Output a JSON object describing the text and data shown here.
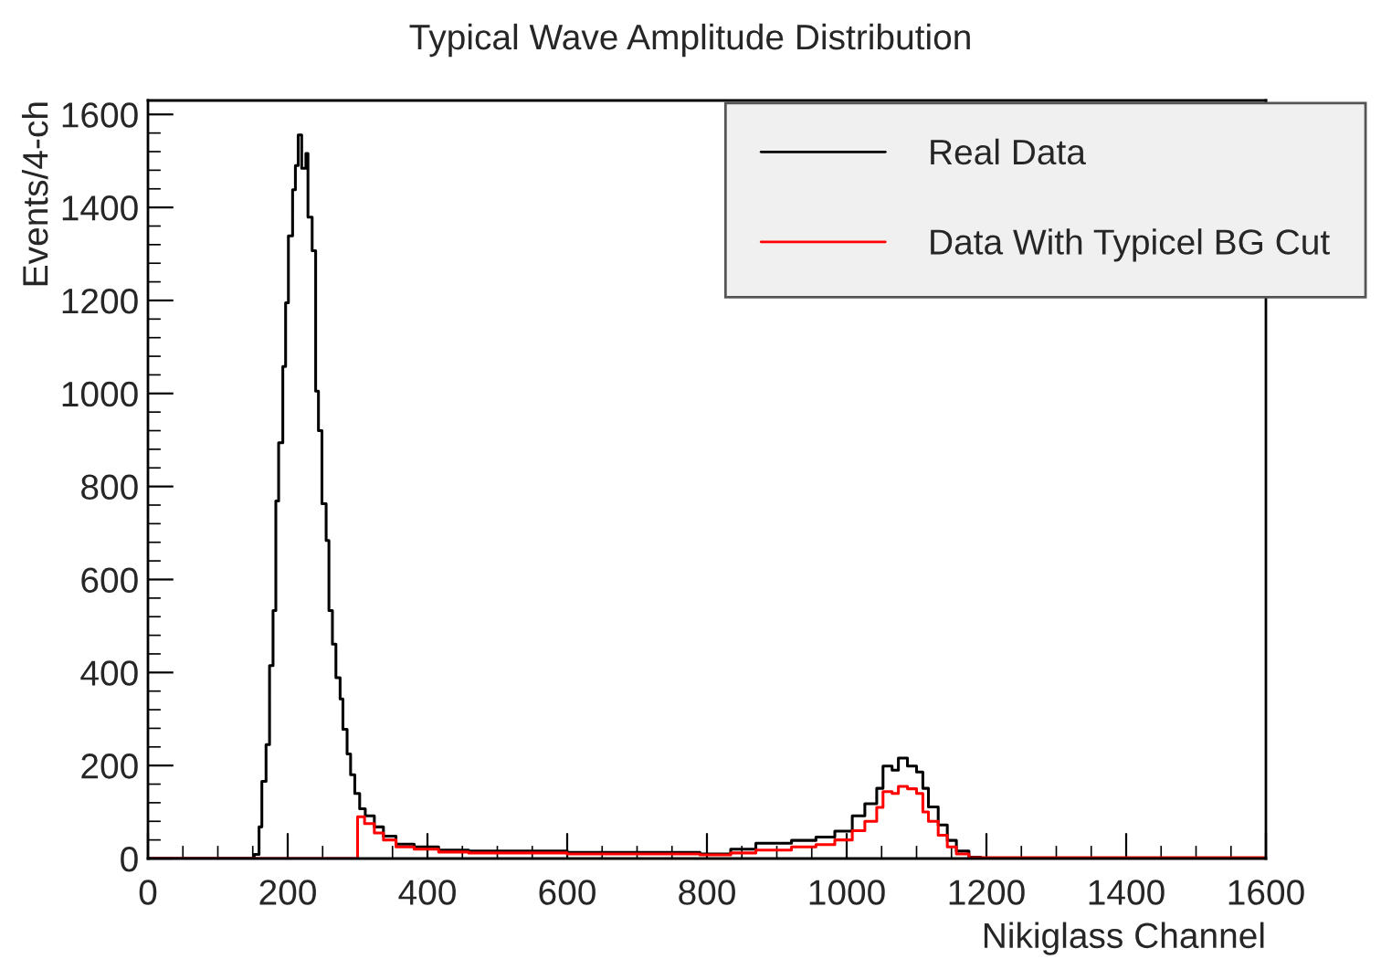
{
  "chart_data": {
    "type": "step",
    "title": "Typical Wave Amplitude Distribution",
    "xlabel": "Nikiglass Channel",
    "ylabel": "Events/4-ch",
    "xlim": [
      0,
      1600
    ],
    "ylim": [
      0,
      1630
    ],
    "xticks": [
      0,
      200,
      400,
      600,
      800,
      1000,
      1200,
      1400,
      1600
    ],
    "yticks": [
      0,
      200,
      400,
      600,
      800,
      1000,
      1200,
      1400,
      1600
    ],
    "grid": false,
    "legend": "top right",
    "series": [
      {
        "name": "Real Data",
        "color": "#000000",
        "x": [
          0,
          141,
          152,
          159,
          163,
          169,
          174,
          179,
          183,
          187,
          193,
          197,
          201,
          207,
          211,
          215,
          220,
          226,
          229,
          235,
          240,
          244,
          249,
          255,
          259,
          264,
          269,
          275,
          279,
          285,
          290,
          296,
          303,
          311,
          324,
          337,
          355,
          381,
          416,
          459,
          600,
          790,
          834,
          870,
          921,
          956,
          983,
          1008,
          1026,
          1043,
          1052,
          1065,
          1074,
          1087,
          1100,
          1109,
          1117,
          1131,
          1144,
          1157,
          1175,
          1192,
          1600
        ],
        "values": [
          0,
          0,
          9,
          68,
          166,
          245,
          415,
          533,
          769,
          894,
          1058,
          1195,
          1339,
          1438,
          1490,
          1556,
          1484,
          1516,
          1379,
          1307,
          1005,
          920,
          763,
          684,
          533,
          461,
          389,
          343,
          278,
          225,
          180,
          140,
          107,
          92,
          68,
          48,
          31,
          25,
          18,
          16,
          13,
          10,
          20,
          33,
          39,
          46,
          59,
          92,
          118,
          151,
          199,
          190,
          216,
          199,
          186,
          151,
          111,
          72,
          39,
          16,
          3,
          0,
          0
        ]
      },
      {
        "name": "Data With Typicel BG Cut",
        "color": "#ff0000",
        "x": [
          0,
          300,
          310,
          324,
          337,
          355,
          381,
          416,
          459,
          600,
          790,
          834,
          870,
          921,
          956,
          983,
          1008,
          1026,
          1043,
          1052,
          1065,
          1074,
          1087,
          1100,
          1109,
          1117,
          1131,
          1144,
          1157,
          1175,
          1600
        ],
        "values": [
          0,
          90,
          75,
          55,
          40,
          25,
          20,
          14,
          12,
          10,
          8,
          12,
          18,
          25,
          30,
          40,
          60,
          80,
          110,
          144,
          140,
          155,
          150,
          140,
          100,
          80,
          50,
          25,
          10,
          2,
          0
        ]
      }
    ]
  }
}
